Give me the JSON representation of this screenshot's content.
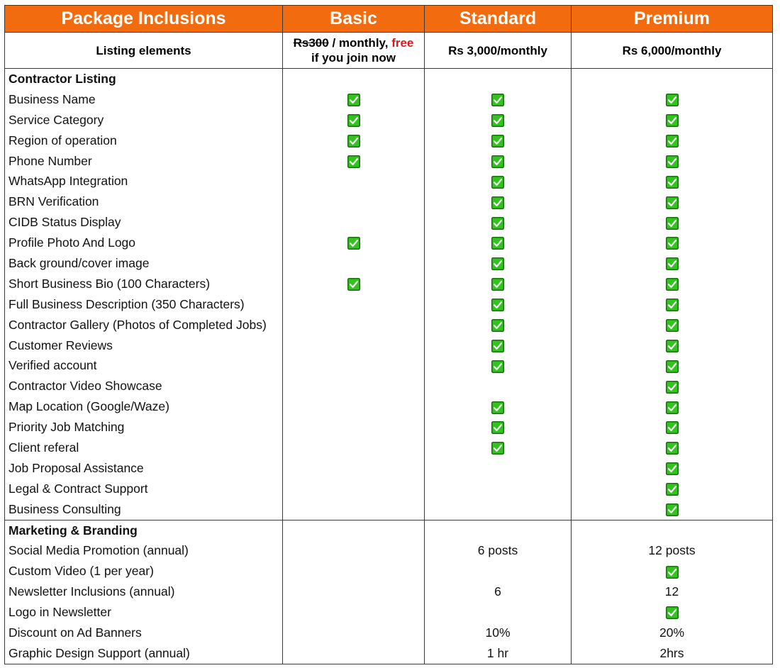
{
  "header": {
    "title": "Package Inclusions",
    "tiers": [
      "Basic",
      "Standard",
      "Premium"
    ]
  },
  "subheader": {
    "label": "Listing elements",
    "basic": {
      "old_price": "Rs300",
      "monthly": " / monthly, ",
      "free": "free",
      "join": "if you join now"
    },
    "standard": "Rs 3,000/monthly",
    "premium": "Rs 6,000/monthly"
  },
  "icons": {
    "check": "checkbox-checked-icon",
    "check_fill": "#33c31e"
  },
  "sections": [
    {
      "title": "Contractor Listing",
      "rows": [
        {
          "label": "Business Name",
          "values": [
            "check",
            "check",
            "check"
          ]
        },
        {
          "label": "Service Category",
          "values": [
            "check",
            "check",
            "check"
          ]
        },
        {
          "label": "Region of operation",
          "values": [
            "check",
            "check",
            "check"
          ]
        },
        {
          "label": "Phone Number",
          "values": [
            "check",
            "check",
            "check"
          ]
        },
        {
          "label": "WhatsApp Integration",
          "values": [
            "",
            "check",
            "check"
          ]
        },
        {
          "label": "BRN Verification",
          "values": [
            "",
            "check",
            "check"
          ]
        },
        {
          "label": "CIDB Status Display",
          "values": [
            "",
            "check",
            "check"
          ]
        },
        {
          "label": "Profile Photo And Logo",
          "values": [
            "check",
            "check",
            "check"
          ]
        },
        {
          "label": "Back ground/cover image",
          "values": [
            "",
            "check",
            "check"
          ]
        },
        {
          "label": "Short Business Bio (100 Characters)",
          "values": [
            "check",
            "check",
            "check"
          ]
        },
        {
          "label": "Full Business Description (350 Characters)",
          "values": [
            "",
            "check",
            "check"
          ]
        },
        {
          "label": "Contractor Gallery (Photos of Completed Jobs)",
          "values": [
            "",
            "check",
            "check"
          ]
        },
        {
          "label": "Customer Reviews",
          "values": [
            "",
            "check",
            "check"
          ]
        },
        {
          "label": "Verified account",
          "values": [
            "",
            "check",
            "check"
          ]
        },
        {
          "label": "Contractor Video Showcase",
          "values": [
            "",
            "",
            "check"
          ]
        },
        {
          "label": "Map Location (Google/Waze)",
          "values": [
            "",
            "check",
            "check"
          ]
        },
        {
          "label": "Priority Job Matching",
          "values": [
            "",
            "check",
            "check"
          ]
        },
        {
          "label": "Client referal",
          "values": [
            "",
            "check",
            "check"
          ]
        },
        {
          "label": "Job Proposal Assistance",
          "values": [
            "",
            "",
            "check"
          ]
        },
        {
          "label": "Legal & Contract Support",
          "values": [
            "",
            "",
            "check"
          ]
        },
        {
          "label": "Business Consulting",
          "values": [
            "",
            "",
            "check"
          ]
        }
      ]
    },
    {
      "title": "Marketing & Branding",
      "rows": [
        {
          "label": "Social Media Promotion (annual)",
          "values": [
            "",
            "6 posts",
            "12 posts"
          ]
        },
        {
          "label": "Custom Video (1 per year)",
          "values": [
            "",
            "",
            "check"
          ]
        },
        {
          "label": "Newsletter Inclusions (annual)",
          "values": [
            "",
            "6",
            "12"
          ]
        },
        {
          "label": "Logo in Newsletter",
          "values": [
            "",
            "",
            "check"
          ]
        },
        {
          "label": "Discount on Ad Banners",
          "values": [
            "",
            "10%",
            "20%"
          ]
        },
        {
          "label": "Graphic Design Support (annual)",
          "values": [
            "",
            "1 hr",
            "2hrs"
          ]
        }
      ]
    }
  ]
}
